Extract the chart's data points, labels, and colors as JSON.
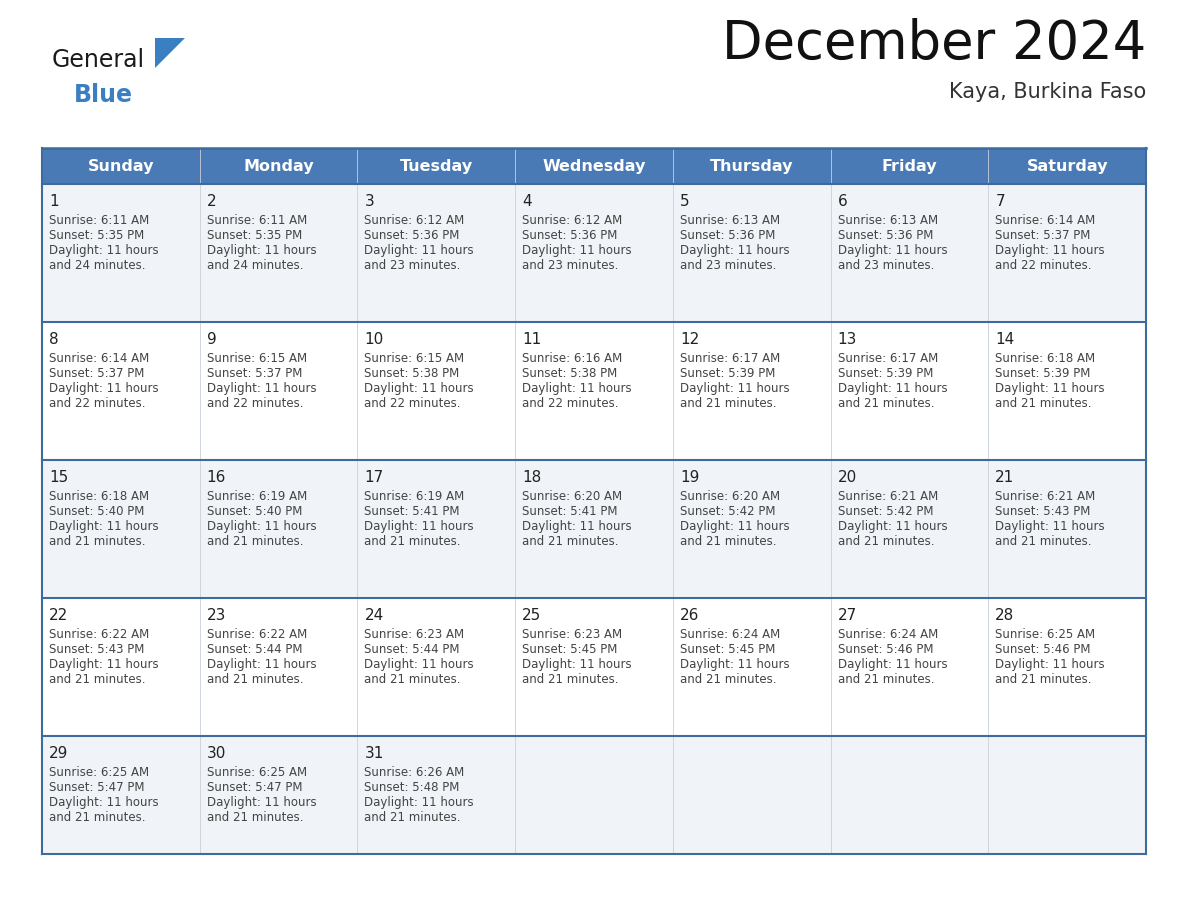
{
  "title": "December 2024",
  "subtitle": "Kaya, Burkina Faso",
  "header_bg_color": "#4a7ab5",
  "header_text_color": "#FFFFFF",
  "days_of_week": [
    "Sunday",
    "Monday",
    "Tuesday",
    "Wednesday",
    "Thursday",
    "Friday",
    "Saturday"
  ],
  "row_bg_colors": [
    "#f0f4f8",
    "#ffffff",
    "#f0f4f8",
    "#ffffff",
    "#f0f4f8"
  ],
  "border_color": "#3d6b9e",
  "separator_color": "#b0bec5",
  "day_number_color": "#222222",
  "cell_text_color": "#444444",
  "calendar_data": [
    [
      {
        "day": 1,
        "sunrise": "6:11 AM",
        "sunset": "5:35 PM",
        "daylight_hours": 11,
        "daylight_minutes": 24
      },
      {
        "day": 2,
        "sunrise": "6:11 AM",
        "sunset": "5:35 PM",
        "daylight_hours": 11,
        "daylight_minutes": 24
      },
      {
        "day": 3,
        "sunrise": "6:12 AM",
        "sunset": "5:36 PM",
        "daylight_hours": 11,
        "daylight_minutes": 23
      },
      {
        "day": 4,
        "sunrise": "6:12 AM",
        "sunset": "5:36 PM",
        "daylight_hours": 11,
        "daylight_minutes": 23
      },
      {
        "day": 5,
        "sunrise": "6:13 AM",
        "sunset": "5:36 PM",
        "daylight_hours": 11,
        "daylight_minutes": 23
      },
      {
        "day": 6,
        "sunrise": "6:13 AM",
        "sunset": "5:36 PM",
        "daylight_hours": 11,
        "daylight_minutes": 23
      },
      {
        "day": 7,
        "sunrise": "6:14 AM",
        "sunset": "5:37 PM",
        "daylight_hours": 11,
        "daylight_minutes": 22
      }
    ],
    [
      {
        "day": 8,
        "sunrise": "6:14 AM",
        "sunset": "5:37 PM",
        "daylight_hours": 11,
        "daylight_minutes": 22
      },
      {
        "day": 9,
        "sunrise": "6:15 AM",
        "sunset": "5:37 PM",
        "daylight_hours": 11,
        "daylight_minutes": 22
      },
      {
        "day": 10,
        "sunrise": "6:15 AM",
        "sunset": "5:38 PM",
        "daylight_hours": 11,
        "daylight_minutes": 22
      },
      {
        "day": 11,
        "sunrise": "6:16 AM",
        "sunset": "5:38 PM",
        "daylight_hours": 11,
        "daylight_minutes": 22
      },
      {
        "day": 12,
        "sunrise": "6:17 AM",
        "sunset": "5:39 PM",
        "daylight_hours": 11,
        "daylight_minutes": 21
      },
      {
        "day": 13,
        "sunrise": "6:17 AM",
        "sunset": "5:39 PM",
        "daylight_hours": 11,
        "daylight_minutes": 21
      },
      {
        "day": 14,
        "sunrise": "6:18 AM",
        "sunset": "5:39 PM",
        "daylight_hours": 11,
        "daylight_minutes": 21
      }
    ],
    [
      {
        "day": 15,
        "sunrise": "6:18 AM",
        "sunset": "5:40 PM",
        "daylight_hours": 11,
        "daylight_minutes": 21
      },
      {
        "day": 16,
        "sunrise": "6:19 AM",
        "sunset": "5:40 PM",
        "daylight_hours": 11,
        "daylight_minutes": 21
      },
      {
        "day": 17,
        "sunrise": "6:19 AM",
        "sunset": "5:41 PM",
        "daylight_hours": 11,
        "daylight_minutes": 21
      },
      {
        "day": 18,
        "sunrise": "6:20 AM",
        "sunset": "5:41 PM",
        "daylight_hours": 11,
        "daylight_minutes": 21
      },
      {
        "day": 19,
        "sunrise": "6:20 AM",
        "sunset": "5:42 PM",
        "daylight_hours": 11,
        "daylight_minutes": 21
      },
      {
        "day": 20,
        "sunrise": "6:21 AM",
        "sunset": "5:42 PM",
        "daylight_hours": 11,
        "daylight_minutes": 21
      },
      {
        "day": 21,
        "sunrise": "6:21 AM",
        "sunset": "5:43 PM",
        "daylight_hours": 11,
        "daylight_minutes": 21
      }
    ],
    [
      {
        "day": 22,
        "sunrise": "6:22 AM",
        "sunset": "5:43 PM",
        "daylight_hours": 11,
        "daylight_minutes": 21
      },
      {
        "day": 23,
        "sunrise": "6:22 AM",
        "sunset": "5:44 PM",
        "daylight_hours": 11,
        "daylight_minutes": 21
      },
      {
        "day": 24,
        "sunrise": "6:23 AM",
        "sunset": "5:44 PM",
        "daylight_hours": 11,
        "daylight_minutes": 21
      },
      {
        "day": 25,
        "sunrise": "6:23 AM",
        "sunset": "5:45 PM",
        "daylight_hours": 11,
        "daylight_minutes": 21
      },
      {
        "day": 26,
        "sunrise": "6:24 AM",
        "sunset": "5:45 PM",
        "daylight_hours": 11,
        "daylight_minutes": 21
      },
      {
        "day": 27,
        "sunrise": "6:24 AM",
        "sunset": "5:46 PM",
        "daylight_hours": 11,
        "daylight_minutes": 21
      },
      {
        "day": 28,
        "sunrise": "6:25 AM",
        "sunset": "5:46 PM",
        "daylight_hours": 11,
        "daylight_minutes": 21
      }
    ],
    [
      {
        "day": 29,
        "sunrise": "6:25 AM",
        "sunset": "5:47 PM",
        "daylight_hours": 11,
        "daylight_minutes": 21
      },
      {
        "day": 30,
        "sunrise": "6:25 AM",
        "sunset": "5:47 PM",
        "daylight_hours": 11,
        "daylight_minutes": 21
      },
      {
        "day": 31,
        "sunrise": "6:26 AM",
        "sunset": "5:48 PM",
        "daylight_hours": 11,
        "daylight_minutes": 21
      },
      null,
      null,
      null,
      null
    ]
  ],
  "logo_general_color": "#1a1a1a",
  "logo_blue_color": "#3a7fc1",
  "logo_triangle_color": "#3a7fc1",
  "fig_width": 11.88,
  "fig_height": 9.18,
  "dpi": 100
}
